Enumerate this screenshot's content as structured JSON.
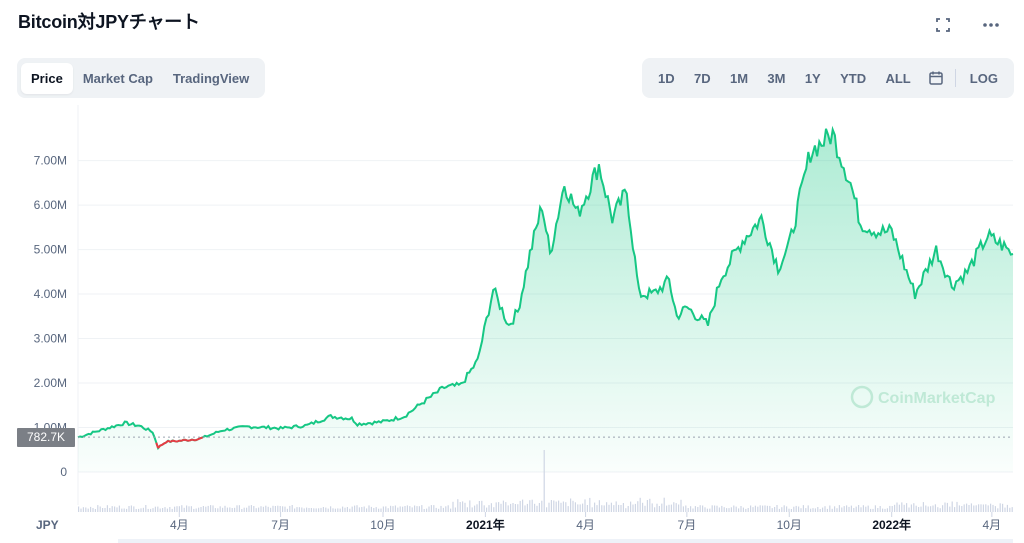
{
  "page": {
    "title": "Bitcoin対JPYチャート"
  },
  "top_icons": [
    "fullscreen-icon",
    "more-icon"
  ],
  "tabs": [
    {
      "label": "Price",
      "active": true
    },
    {
      "label": "Market Cap",
      "active": false
    },
    {
      "label": "TradingView",
      "active": false
    }
  ],
  "ranges": [
    "1D",
    "7D",
    "1M",
    "3M",
    "1Y",
    "YTD",
    "ALL"
  ],
  "range_extra": {
    "calendar_icon": "calendar-icon",
    "log_label": "LOG"
  },
  "current_price_label": "782.7K",
  "currency_label": "JPY",
  "watermark": "CoinMarketCap",
  "colors": {
    "up": "#16c784",
    "down": "#ea3943",
    "grid": "#eff2f5",
    "axis_text": "#58667e"
  },
  "chart_data": {
    "type": "area",
    "title": "",
    "currency": "JPY",
    "y_ticks": [
      "0",
      "1.00M",
      "2.00M",
      "3.00M",
      "4.00M",
      "5.00M",
      "6.00M",
      "7.00M"
    ],
    "y_tick_values": [
      0,
      1000000,
      2000000,
      3000000,
      4000000,
      5000000,
      6000000,
      7000000
    ],
    "ylim": [
      0,
      7800000
    ],
    "x_ticks": [
      "4月",
      "7月",
      "10月",
      "2021年",
      "4月",
      "7月",
      "10月",
      "2022年",
      "4月"
    ],
    "x_tick_dates": [
      "2020-04-01",
      "2020-07-01",
      "2020-10-01",
      "2021-01-01",
      "2021-04-01",
      "2021-07-01",
      "2021-10-01",
      "2022-01-01",
      "2022-04-01"
    ],
    "x_range": [
      "2020-01-01",
      "2022-04-20"
    ],
    "reference_price": 782700,
    "series": [
      {
        "values": [
          [
            "2020-01-01",
            780000
          ],
          [
            "2020-01-20",
            930000
          ],
          [
            "2020-02-12",
            1100000
          ],
          [
            "2020-02-25",
            1040000
          ],
          [
            "2020-03-08",
            900000
          ],
          [
            "2020-03-13",
            550000
          ],
          [
            "2020-03-20",
            680000
          ],
          [
            "2020-04-01",
            700000
          ],
          [
            "2020-04-20",
            750000
          ],
          [
            "2020-05-10",
            940000
          ],
          [
            "2020-06-01",
            1020000
          ],
          [
            "2020-06-20",
            1000000
          ],
          [
            "2020-07-01",
            980000
          ],
          [
            "2020-07-25",
            1050000
          ],
          [
            "2020-08-15",
            1250000
          ],
          [
            "2020-09-03",
            1200000
          ],
          [
            "2020-09-08",
            1080000
          ],
          [
            "2020-10-01",
            1130000
          ],
          [
            "2020-10-20",
            1250000
          ],
          [
            "2020-11-05",
            1550000
          ],
          [
            "2020-11-25",
            1900000
          ],
          [
            "2020-12-10",
            1950000
          ],
          [
            "2020-12-25",
            2500000
          ],
          [
            "2021-01-08",
            4100000
          ],
          [
            "2021-01-22",
            3300000
          ],
          [
            "2021-01-30",
            3600000
          ],
          [
            "2021-02-10",
            4900000
          ],
          [
            "2021-02-21",
            6000000
          ],
          [
            "2021-02-28",
            4900000
          ],
          [
            "2021-03-13",
            6500000
          ],
          [
            "2021-03-25",
            5800000
          ],
          [
            "2021-04-13",
            6900000
          ],
          [
            "2021-04-25",
            5700000
          ],
          [
            "2021-05-08",
            6300000
          ],
          [
            "2021-05-19",
            4000000
          ],
          [
            "2021-06-01",
            4000000
          ],
          [
            "2021-06-15",
            4300000
          ],
          [
            "2021-06-22",
            3500000
          ],
          [
            "2021-07-01",
            3700000
          ],
          [
            "2021-07-20",
            3300000
          ],
          [
            "2021-08-01",
            4400000
          ],
          [
            "2021-08-20",
            5200000
          ],
          [
            "2021-09-06",
            5700000
          ],
          [
            "2021-09-21",
            4600000
          ],
          [
            "2021-10-01",
            5100000
          ],
          [
            "2021-10-20",
            7200000
          ],
          [
            "2021-11-09",
            7600000
          ],
          [
            "2021-11-25",
            6500000
          ],
          [
            "2021-12-04",
            5600000
          ],
          [
            "2021-12-20",
            5400000
          ],
          [
            "2022-01-01",
            5400000
          ],
          [
            "2022-01-22",
            4000000
          ],
          [
            "2022-02-10",
            5000000
          ],
          [
            "2022-02-24",
            4200000
          ],
          [
            "2022-03-10",
            4500000
          ],
          [
            "2022-03-28",
            5300000
          ],
          [
            "2022-04-10",
            5100000
          ],
          [
            "2022-04-20",
            4900000
          ]
        ]
      }
    ],
    "volume": {
      "values": "relative",
      "spike_date": "2021-02-23"
    }
  }
}
